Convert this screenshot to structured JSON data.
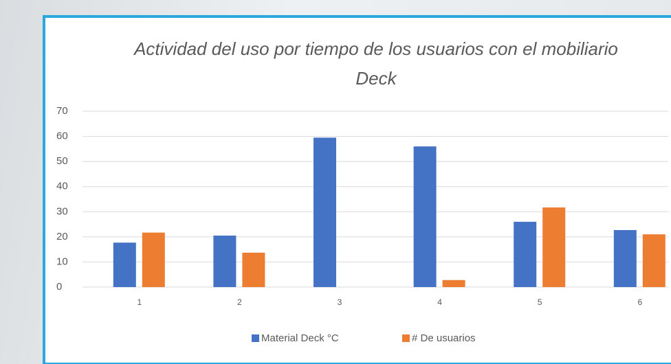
{
  "chart_data": {
    "type": "bar",
    "title": "Actividad del uso por tiempo de los usuarios con el mobiliario Deck",
    "categories": [
      "1",
      "2",
      "3",
      "4",
      "5",
      "6"
    ],
    "series": [
      {
        "name": "Material Deck °C",
        "color": "#4472c4",
        "values": [
          17.7,
          20.5,
          59.5,
          56,
          26,
          22.7
        ]
      },
      {
        "name": "# De usuarios",
        "color": "#ed7d31",
        "values": [
          21.7,
          13.7,
          0,
          2.8,
          31.7,
          21
        ]
      }
    ],
    "ylim": [
      0,
      70
    ],
    "yticks": [
      0,
      10,
      20,
      30,
      40,
      50,
      60,
      70
    ],
    "grid": true,
    "legend": "bottom"
  }
}
